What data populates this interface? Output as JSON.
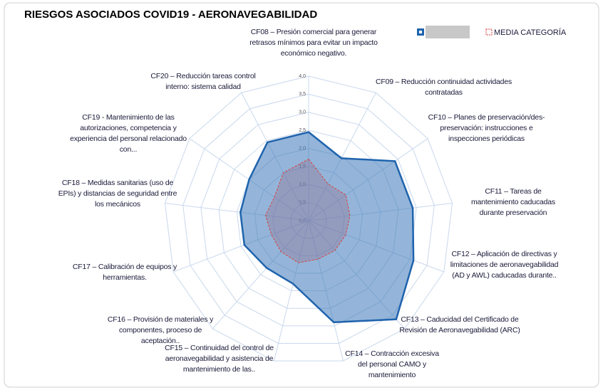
{
  "chart_data": {
    "type": "radar",
    "title": "RIESGOS ASOCIADOS COVID19 - AERONAVEGABILIDAD",
    "categories": [
      "CF08 – Presión comercial para generar retrasos mínimos para evitar un impacto económico negativo.",
      "CF09 – Reducción continuidad actividades contratadas",
      "CF10 – Planes de preservación/des-preservación: instrucciones e inspecciones periódicas",
      "CF11 – Tareas de mantenimiento caducadas durante preservación",
      "CF12 – Aplicación de directivas y limitaciones de aeronavegabilidad (AD y AWL) caducadas durante..",
      "CF13 – Caducidad del Certificado de Revisión de Aeronavegabilidad (ARC)",
      "CF14 – Contracción excesiva del personal CAMO y mantenimiento",
      "CF15 – Continuidad del control de aeronavegabilidad y asistencia de mantenimiento de las..",
      "CF16 – Provisión de materiales y componentes, proceso de aceptación..",
      "CF17 – Calibración de equipos y herramientas.",
      "CF18 – Medidas sanitarias (uso de EPIs) y distancias de seguridad entre los mecánicos",
      "CF19 - Mantenimiento de las autorizaciones, competencia y experiencia del personal relacionado con...",
      "CF20 – Reducción tareas control interno: sistema calidad"
    ],
    "series": [
      {
        "color": "#1f63ad",
        "values": [
          2.45,
          1.95,
          2.9,
          2.9,
          3.1,
          3.65,
          2.9,
          1.8,
          1.75,
          1.9,
          1.9,
          2.0,
          2.45
        ]
      },
      {
        "name": "MEDIA CATEGORÍA",
        "color": "#d9413d",
        "values": [
          1.7,
          1.15,
          1.25,
          1.15,
          1.1,
          1.1,
          1.1,
          1.2,
          1.15,
          1.1,
          1.2,
          1.15,
          1.5
        ]
      }
    ],
    "rlim": [
      0,
      4
    ],
    "rticks": [
      {
        "value": 0,
        "label": "0,0"
      },
      {
        "value": 0.5,
        "label": "0,5"
      },
      {
        "value": 1,
        "label": "1,0"
      },
      {
        "value": 1.5,
        "label": "1,5"
      },
      {
        "value": 2,
        "label": "2,0"
      },
      {
        "value": 2.5,
        "label": "2,5"
      },
      {
        "value": 3,
        "label": "3,0"
      },
      {
        "value": 3.5,
        "label": "3,5"
      },
      {
        "value": 4,
        "label": "4,0"
      }
    ],
    "grid": true,
    "legend": "top-right"
  }
}
